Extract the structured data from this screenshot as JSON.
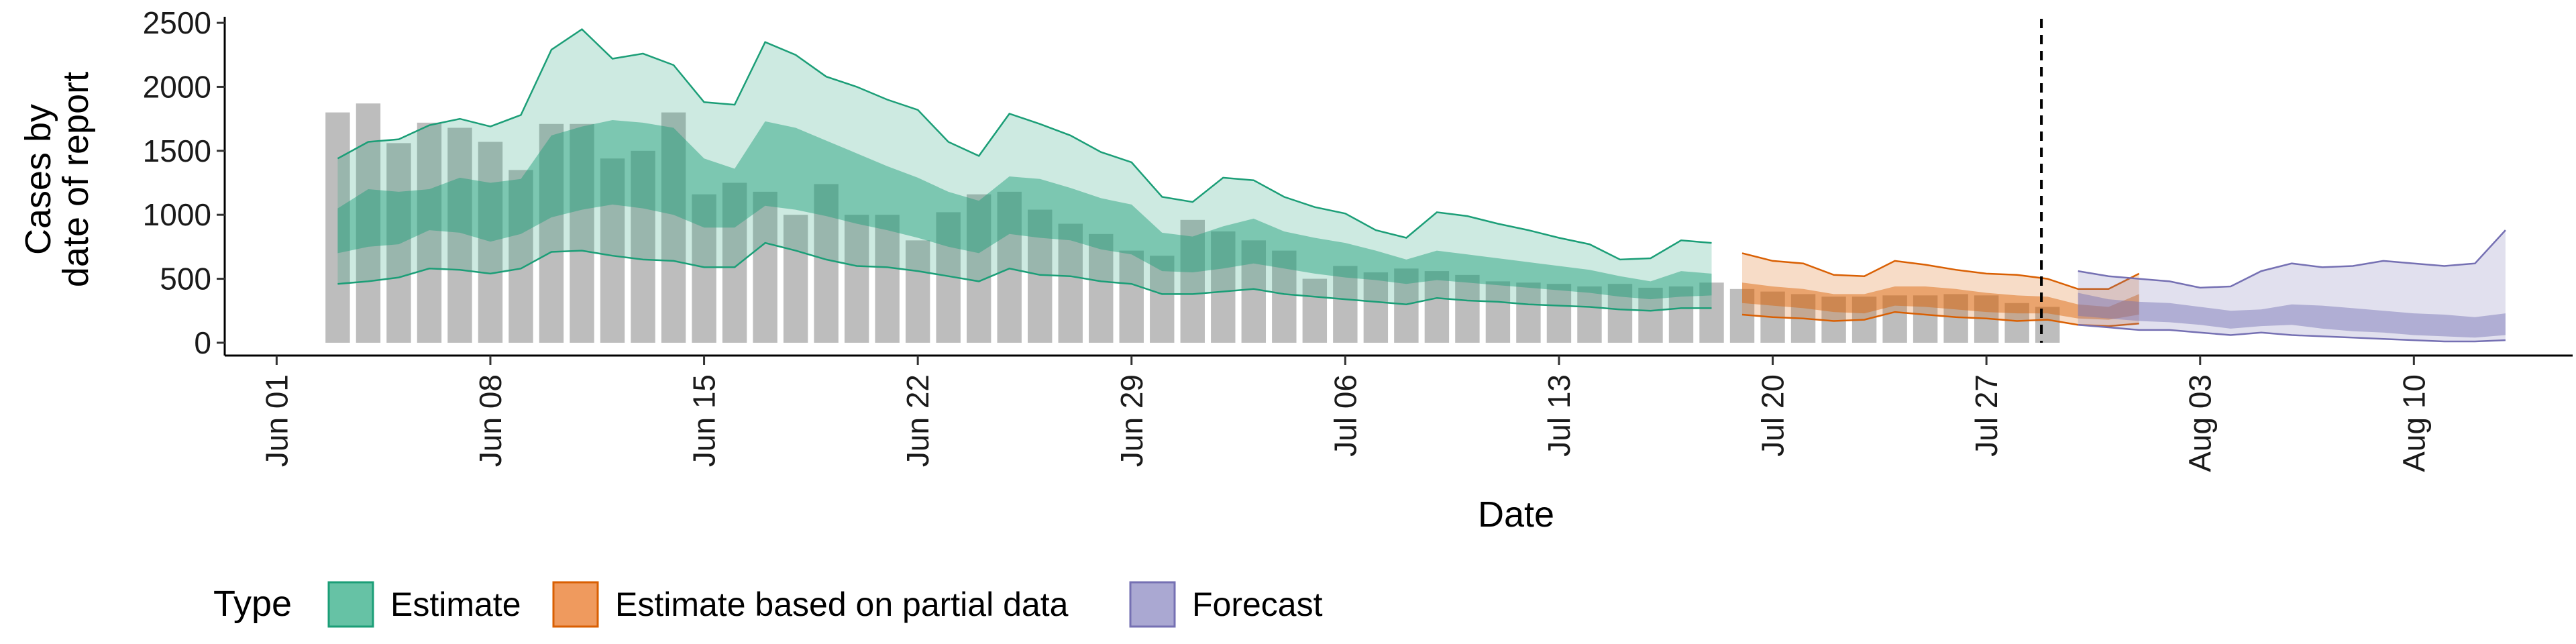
{
  "chart_data": {
    "type": "area",
    "xlabel": "Date",
    "ylabel": [
      "Cases by",
      "date of report"
    ],
    "ylim": [
      -100,
      2600
    ],
    "yticks": [
      0,
      500,
      1000,
      1500,
      2000,
      2500
    ],
    "xticks": [
      {
        "day": 0,
        "label": "Jun 01"
      },
      {
        "day": 7,
        "label": "Jun 08"
      },
      {
        "day": 14,
        "label": "Jun 15"
      },
      {
        "day": 21,
        "label": "Jun 22"
      },
      {
        "day": 28,
        "label": "Jun 29"
      },
      {
        "day": 35,
        "label": "Jul 06"
      },
      {
        "day": 42,
        "label": "Jul 13"
      },
      {
        "day": 49,
        "label": "Jul 20"
      },
      {
        "day": 56,
        "label": "Jul 27"
      },
      {
        "day": 63,
        "label": "Aug 03"
      },
      {
        "day": 70,
        "label": "Aug 10"
      }
    ],
    "xlim_day": [
      -1.7,
      75.2
    ],
    "x_day_zero": "Jun 01",
    "cutoff_day": 57.8,
    "grid": false,
    "legend": {
      "title": "Type",
      "position": "bottom",
      "items": [
        {
          "label": "Estimate",
          "fill": "#66c2a5",
          "stroke": "#1b9e77"
        },
        {
          "label": "Estimate based on partial data",
          "fill": "#ef9a5e",
          "stroke": "#d95f02"
        },
        {
          "label": "Forecast",
          "fill": "#aaa8d2",
          "stroke": "#7570b3"
        }
      ]
    },
    "colors": {
      "bars": "#bdbdbd",
      "estimate": "#1b9e77",
      "partial": "#d95f02",
      "forecast": "#7570b3"
    },
    "reported_cases": {
      "start_day": 2,
      "values": [
        1800,
        1870,
        1560,
        1720,
        1680,
        1570,
        1350,
        1710,
        1710,
        1440,
        1500,
        1800,
        1160,
        1250,
        1180,
        1000,
        1240,
        1000,
        1000,
        800,
        1020,
        1160,
        1180,
        1040,
        930,
        850,
        720,
        680,
        960,
        870,
        800,
        720,
        500,
        600,
        550,
        580,
        560,
        530,
        480,
        470,
        460,
        440,
        460,
        430,
        440,
        470,
        420,
        400,
        380,
        360,
        360,
        370,
        370,
        380,
        370,
        310,
        280
      ]
    },
    "series": [
      {
        "name": "Estimate",
        "type": "Estimate",
        "x_start": 2,
        "lower90": [
          460,
          480,
          510,
          580,
          570,
          540,
          580,
          710,
          720,
          680,
          650,
          640,
          590,
          590,
          780,
          720,
          650,
          600,
          590,
          560,
          520,
          480,
          580,
          530,
          520,
          480,
          460,
          380,
          380,
          400,
          420,
          380,
          360,
          340,
          320,
          300,
          350,
          330,
          320,
          300,
          290,
          280,
          260,
          250,
          270,
          270
        ],
        "lower50": [
          700,
          750,
          770,
          880,
          860,
          790,
          850,
          980,
          1040,
          1080,
          1050,
          1000,
          900,
          900,
          1070,
          1040,
          990,
          930,
          880,
          820,
          750,
          700,
          850,
          820,
          800,
          730,
          690,
          560,
          550,
          580,
          620,
          580,
          540,
          510,
          490,
          460,
          490,
          470,
          450,
          430,
          410,
          390,
          360,
          340,
          360,
          370
        ],
        "upper50": [
          1050,
          1200,
          1180,
          1200,
          1290,
          1250,
          1280,
          1620,
          1690,
          1740,
          1720,
          1680,
          1440,
          1360,
          1730,
          1680,
          1580,
          1480,
          1380,
          1290,
          1180,
          1110,
          1300,
          1280,
          1210,
          1130,
          1080,
          860,
          830,
          910,
          970,
          870,
          820,
          780,
          720,
          650,
          720,
          690,
          660,
          630,
          600,
          570,
          520,
          480,
          560,
          540
        ],
        "upper90": [
          1440,
          1570,
          1590,
          1700,
          1750,
          1690,
          1780,
          2290,
          2450,
          2220,
          2260,
          2170,
          1880,
          1860,
          2350,
          2250,
          2080,
          2000,
          1900,
          1820,
          1570,
          1460,
          1790,
          1710,
          1620,
          1490,
          1410,
          1140,
          1100,
          1290,
          1270,
          1140,
          1060,
          1010,
          880,
          820,
          1020,
          990,
          930,
          880,
          820,
          770,
          650,
          660,
          800,
          780
        ]
      },
      {
        "name": "Estimate based on partial data",
        "type": "Estimate based on partial data",
        "x_start": 48,
        "lower90": [
          220,
          200,
          190,
          170,
          180,
          240,
          220,
          200,
          190,
          170,
          180,
          140,
          130,
          150
        ],
        "lower50": [
          310,
          290,
          270,
          240,
          230,
          290,
          280,
          260,
          240,
          230,
          230,
          190,
          180,
          220
        ],
        "upper50": [
          470,
          440,
          420,
          380,
          380,
          440,
          440,
          420,
          390,
          370,
          360,
          300,
          280,
          380
        ],
        "upper90": [
          700,
          640,
          620,
          530,
          520,
          640,
          610,
          570,
          540,
          530,
          500,
          420,
          420,
          540
        ]
      },
      {
        "name": "Forecast",
        "type": "Forecast",
        "x_start": 59,
        "lower90": [
          140,
          120,
          100,
          100,
          80,
          60,
          80,
          60,
          50,
          40,
          30,
          20,
          10,
          10,
          20
        ],
        "lower50": [
          210,
          190,
          170,
          160,
          140,
          110,
          130,
          140,
          110,
          90,
          80,
          60,
          50,
          40,
          60
        ],
        "upper50": [
          390,
          340,
          320,
          310,
          280,
          250,
          260,
          300,
          290,
          270,
          250,
          230,
          220,
          200,
          230
        ],
        "upper90": [
          560,
          520,
          500,
          480,
          430,
          440,
          560,
          620,
          590,
          600,
          640,
          620,
          600,
          620,
          880
        ]
      }
    ]
  }
}
